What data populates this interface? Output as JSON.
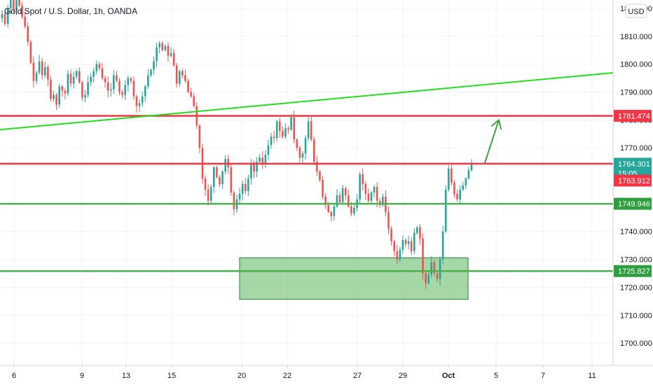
{
  "colors": {
    "up": "#26a69a",
    "down": "#ef5350",
    "grid": "#f0f3fa",
    "axis_border": "#d1d4dc",
    "red_line": "#f23645",
    "green_line": "#4caf50",
    "trend_line": "#22dd22",
    "arrow": "#43a047",
    "zone_fill": "#4caf50",
    "last_price_bg": "#26a69a",
    "prev_price_bg": "#f23645"
  },
  "chart_data": {
    "type": "candlestick",
    "title": "Gold Spot / U.S. Dollar, 1h, OANDA",
    "currency": "USD",
    "y_range": [
      1692,
      1823
    ],
    "y_ticks": [
      1700,
      1710,
      1720,
      1730,
      1740,
      1770,
      1780,
      1790,
      1800,
      1810,
      1820
    ],
    "y_tick_labels": [
      "1700.000",
      "1710.000",
      "1720.000",
      "1730.000",
      "1740.000",
      "1770.000",
      "1780.000",
      "1790.000",
      "1800.000",
      "1810.000",
      "1820.000"
    ],
    "x_tick_labels": [
      "6",
      "9",
      "13",
      "15",
      "20",
      "22",
      "27",
      "29",
      "Oct",
      "5",
      "7",
      "11"
    ],
    "x_tick_slots": [
      20,
      117,
      180,
      245,
      345,
      410,
      510,
      575,
      640,
      708,
      775,
      845
    ],
    "price_levels": [
      {
        "label": "1781.474",
        "value": 1781.474,
        "color": "red"
      },
      {
        "label": "1764.301",
        "value": 1764.301,
        "color": "red",
        "type": "last_price",
        "countdown": "15:05"
      },
      {
        "label": "1763.912",
        "value": 1763.912,
        "color": "red",
        "type": "prev_close"
      },
      {
        "label": "1749.946",
        "value": 1749.946,
        "color": "green"
      },
      {
        "label": "1725.827",
        "value": 1725.827,
        "color": "green"
      }
    ],
    "horizontal_lines": [
      {
        "value": 1781.474,
        "color": "red"
      },
      {
        "value": 1764.301,
        "color": "red"
      },
      {
        "value": 1749.946,
        "color": "green"
      },
      {
        "value": 1725.827,
        "color": "green"
      }
    ],
    "trend_line": {
      "x_start": 0,
      "y_start": 1776.5,
      "x_end": 875,
      "y_end": 1796.9
    },
    "zone": {
      "x_start": 342,
      "x_end": 668,
      "y_high": 1730.6,
      "y_low": 1715.7
    },
    "arrow": {
      "x_start": 692,
      "y_start": 1764.6,
      "x_end": 712,
      "y_end": 1780.0
    },
    "closes": [
      1818.0,
      1814.5,
      1820.0,
      1823.0,
      1819.5,
      1824.0,
      1821.0,
      1817.0,
      1813.5,
      1808.0,
      1800.5,
      1794.0,
      1797.0,
      1801.0,
      1796.0,
      1799.0,
      1794.5,
      1787.5,
      1789.0,
      1785.5,
      1792.0,
      1790.5,
      1789.5,
      1796.5,
      1793.0,
      1795.5,
      1797.5,
      1793.5,
      1788.0,
      1789.0,
      1793.5,
      1795.5,
      1797.5,
      1800.0,
      1798.5,
      1795.0,
      1793.5,
      1790.5,
      1791.0,
      1796.0,
      1794.0,
      1790.0,
      1789.0,
      1792.5,
      1795.0,
      1794.0,
      1788.5,
      1785.0,
      1786.0,
      1788.5,
      1792.0,
      1796.0,
      1798.0,
      1801.0,
      1806.0,
      1807.5,
      1805.0,
      1806.5,
      1803.0,
      1804.0,
      1799.5,
      1793.0,
      1797.5,
      1796.0,
      1794.0,
      1790.0,
      1788.5,
      1785.0,
      1778.0,
      1770.0,
      1759.0,
      1755.0,
      1751.0,
      1756.0,
      1763.0,
      1759.5,
      1757.0,
      1761.5,
      1766.0,
      1763.0,
      1754.0,
      1748.0,
      1751.5,
      1753.5,
      1757.0,
      1754.5,
      1759.0,
      1764.0,
      1761.5,
      1765.0,
      1766.5,
      1764.0,
      1767.5,
      1771.0,
      1774.0,
      1773.5,
      1779.5,
      1776.0,
      1774.0,
      1777.0,
      1776.5,
      1781.0,
      1773.0,
      1770.0,
      1766.5,
      1768.0,
      1773.5,
      1779.5,
      1773.0,
      1765.0,
      1761.5,
      1758.5,
      1752.5,
      1749.5,
      1747.0,
      1745.5,
      1749.0,
      1753.0,
      1750.5,
      1755.5,
      1753.0,
      1749.0,
      1746.5,
      1748.5,
      1751.5,
      1760.5,
      1757.0,
      1753.5,
      1751.0,
      1754.0,
      1756.0,
      1751.0,
      1749.5,
      1752.5,
      1747.0,
      1741.0,
      1736.5,
      1733.0,
      1730.0,
      1733.5,
      1737.0,
      1735.5,
      1736.5,
      1733.0,
      1739.5,
      1741.5,
      1737.5,
      1725.0,
      1721.5,
      1724.5,
      1729.0,
      1725.0,
      1723.0,
      1730.0,
      1740.0,
      1755.0,
      1762.5,
      1757.5,
      1753.5,
      1751.5,
      1755.0,
      1756.5,
      1759.0,
      1762.0,
      1764.3
    ]
  }
}
